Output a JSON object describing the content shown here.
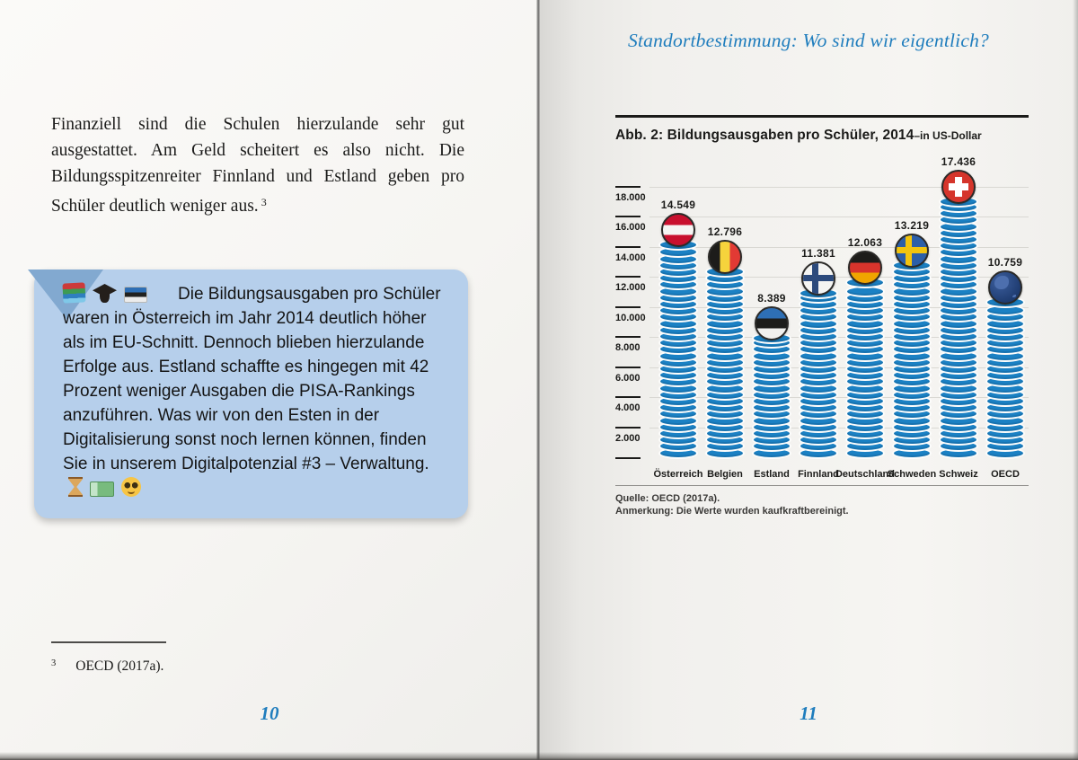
{
  "page_left": {
    "paragraph": "Finanziell sind die Schulen hierzulande sehr gut ausgestattet. Am Geld scheitert es also nicht. Die Bildungsspitzenreiter Finnland und Estland geben pro Schüler deutlich weniger aus.",
    "paragraph_footnote_ref": "3",
    "bubble": {
      "text": "Die Bildungsausgaben pro Schüler waren in Österreich im Jahr 2014 deutlich höher als im EU-Schnitt. Dennoch blieben hierzulande Erfolge aus. Estland schaffte es hingegen mit 42 Prozent weniger Ausgaben die PISA-Rankings anzuführen. Was wir von den Esten in der Digitalisierung sonst noch lernen können, finden Sie in unserem Digitalpotenzial #3 – Verwaltung.",
      "icons_start": [
        "books-icon",
        "graduation-cap-icon",
        "estonia-flag-icon"
      ],
      "icons_end": [
        "hourglass-icon",
        "euro-banknote-icon",
        "nerd-face-icon"
      ]
    },
    "footnote": {
      "number": "3",
      "text": "OECD (2017a)."
    },
    "page_number": "10"
  },
  "page_right": {
    "header": "Standortbestimmung: Wo sind wir eigentlich?",
    "figure": {
      "title_main": "Abb. 2: Bildungsausgaben pro Schüler, 2014",
      "title_suffix": "–in US-Dollar",
      "source": "Quelle: OECD (2017a).",
      "note": "Anmerkung: Die Werte wurden kaufkraftbereinigt."
    },
    "page_number": "11"
  },
  "chart_data": {
    "type": "bar",
    "title": "Abb. 2: Bildungsausgaben pro Schüler, 2014 – in US-Dollar",
    "categories": [
      "Österreich",
      "Belgien",
      "Estland",
      "Finnland",
      "Deutschland",
      "Schweden",
      "Schweiz",
      "OECD"
    ],
    "values": [
      14549,
      12796,
      8389,
      11381,
      12063,
      13219,
      17436,
      10759
    ],
    "value_labels": [
      "14.549",
      "12.796",
      "8.389",
      "11.381",
      "12.063",
      "13.219",
      "17.436",
      "10.759"
    ],
    "flags": [
      "austria",
      "belgium",
      "estonia",
      "finland",
      "germany",
      "sweden",
      "switzerland",
      "globe"
    ],
    "xlabel": "",
    "ylabel": "US-Dollar",
    "ylim": [
      0,
      18000
    ],
    "ytick_step": 2000,
    "ytick_labels": [
      "2.000",
      "4.000",
      "6.000",
      "8.000",
      "10.000",
      "12.000",
      "14.000",
      "16.000",
      "18.000"
    ],
    "grid": true,
    "legend": "none",
    "bar_style": "coin-stack",
    "bar_color": "#1b81c4"
  },
  "colors": {
    "accent_blue": "#1f7dbd",
    "coin_blue": "#1b81c4",
    "bubble_background": "#b6cfeb",
    "bubble_tail": "#82a9d0",
    "text": "#1b1b1a"
  }
}
